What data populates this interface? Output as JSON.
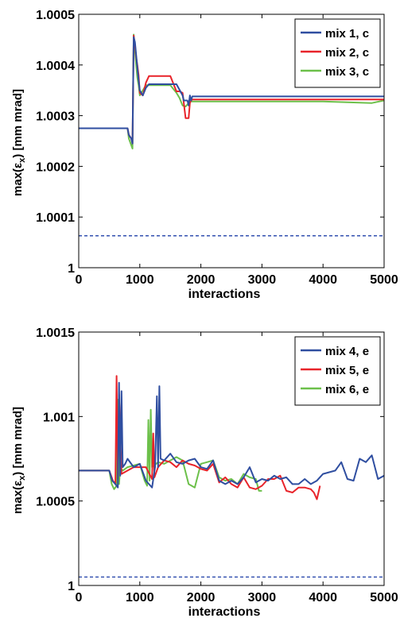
{
  "chart_data": [
    {
      "type": "line",
      "xlabel": "interactions",
      "ylabel": "max(ε_x) [mm mrad]",
      "ylabel_main": "max(ε",
      "ylabel_sub": "x",
      "ylabel_tail": ") [mm mrad]",
      "xlim": [
        0,
        5000
      ],
      "ylim": [
        1.0,
        1.0005
      ],
      "xticks": [
        0,
        1000,
        2000,
        3000,
        4000,
        5000
      ],
      "xtick_labels": [
        "0",
        "1000",
        "2000",
        "3000",
        "4000",
        "5000"
      ],
      "yticks": [
        1.0,
        1.0001,
        1.0002,
        1.0003,
        1.0004,
        1.0005
      ],
      "ytick_labels": [
        "1",
        "1.0001",
        "1.0002",
        "1.0003",
        "1.0004",
        "1.0005"
      ],
      "legend_position": "top-right",
      "grid": false,
      "reference_line": {
        "y": 1.000063,
        "style": "dashed",
        "color": "#1f3fa8"
      },
      "series": [
        {
          "name": "mix 1, c",
          "color": "#2f4ea0",
          "x": [
            0,
            800,
            820,
            860,
            880,
            900,
            920,
            940,
            960,
            980,
            1000,
            1050,
            1100,
            1150,
            1200,
            1300,
            1400,
            1500,
            1600,
            1700,
            1720,
            1780,
            1800,
            1820,
            1840,
            1860,
            1900,
            2000,
            3000,
            4000,
            5000
          ],
          "y": [
            1.000275,
            1.000275,
            1.000262,
            1.000255,
            1.000245,
            1.000455,
            1.000445,
            1.00042,
            1.000395,
            1.00037,
            1.00035,
            1.00034,
            1.000355,
            1.000362,
            1.000362,
            1.000362,
            1.000362,
            1.000362,
            1.000362,
            1.00034,
            1.00033,
            1.00033,
            1.00032,
            1.00034,
            1.00033,
            1.000338,
            1.000338,
            1.000338,
            1.000338,
            1.000338,
            1.000338
          ]
        },
        {
          "name": "mix 2, c",
          "color": "#e8232a",
          "x": [
            0,
            800,
            820,
            860,
            880,
            900,
            920,
            940,
            960,
            980,
            1000,
            1050,
            1100,
            1150,
            1200,
            1300,
            1400,
            1500,
            1600,
            1650,
            1700,
            1750,
            1800,
            1820,
            1840,
            1860,
            1900,
            2000,
            3000,
            4000,
            5000
          ],
          "y": [
            1.000275,
            1.000275,
            1.000262,
            1.000255,
            1.000245,
            1.000458,
            1.00044,
            1.000415,
            1.0004,
            1.00038,
            1.000345,
            1.00034,
            1.000365,
            1.000378,
            1.000378,
            1.000378,
            1.000378,
            1.000378,
            1.000348,
            1.000348,
            1.000345,
            1.000295,
            1.000295,
            1.000325,
            1.00033,
            1.000332,
            1.000332,
            1.000332,
            1.000332,
            1.000332,
            1.000332
          ]
        },
        {
          "name": "mix 3, c",
          "color": "#6cc04a",
          "x": [
            0,
            800,
            820,
            860,
            880,
            900,
            920,
            940,
            960,
            980,
            1000,
            1050,
            1100,
            1150,
            1200,
            1300,
            1400,
            1500,
            1600,
            1650,
            1700,
            1750,
            1800,
            1820,
            1850,
            1900,
            2000,
            3000,
            3500,
            4000,
            4500,
            4800,
            5000
          ],
          "y": [
            1.000275,
            1.000275,
            1.000255,
            1.000242,
            1.000235,
            1.00046,
            1.00043,
            1.0004,
            1.000375,
            1.00036,
            1.00034,
            1.00035,
            1.00036,
            1.00036,
            1.00036,
            1.00036,
            1.00036,
            1.00036,
            1.000345,
            1.000335,
            1.00032,
            1.000318,
            1.000325,
            1.00033,
            1.000328,
            1.000328,
            1.000328,
            1.000328,
            1.000328,
            1.000328,
            1.000326,
            1.000325,
            1.00033
          ]
        }
      ]
    },
    {
      "type": "line",
      "xlabel": "interactions",
      "ylabel": "max(ε_x) [mm mrad]",
      "ylabel_main": "max(ε",
      "ylabel_sub": "x",
      "ylabel_tail": ") [mm mrad]",
      "xlim": [
        0,
        5000
      ],
      "ylim": [
        1.0,
        1.0015
      ],
      "xticks": [
        0,
        1000,
        2000,
        3000,
        4000,
        5000
      ],
      "xtick_labels": [
        "0",
        "1000",
        "2000",
        "3000",
        "4000",
        "5000"
      ],
      "yticks": [
        1.0,
        1.0005,
        1.001,
        1.0015
      ],
      "ytick_labels": [
        "1",
        "1.0005",
        "1.001",
        "1.0015"
      ],
      "legend_position": "top-right",
      "grid": false,
      "reference_line": {
        "y": 1.00005,
        "style": "dashed",
        "color": "#1f3fa8"
      },
      "series": [
        {
          "name": "mix 4, e",
          "color": "#2f4ea0",
          "x": [
            0,
            500,
            550,
            600,
            640,
            660,
            680,
            700,
            720,
            760,
            800,
            900,
            1000,
            1100,
            1150,
            1200,
            1250,
            1280,
            1300,
            1320,
            1340,
            1400,
            1500,
            1600,
            1700,
            1800,
            1900,
            2000,
            2100,
            2200,
            2300,
            2400,
            2500,
            2600,
            2700,
            2800,
            2900,
            3000,
            3100,
            3200,
            3300,
            3400,
            3500,
            3600,
            3700,
            3800,
            3900,
            4000,
            4100,
            4200,
            4300,
            4400,
            4500,
            4600,
            4700,
            4800,
            4900,
            5000
          ],
          "y": [
            1.00068,
            1.00068,
            1.00062,
            1.0006,
            1.00058,
            1.0012,
            1.00065,
            1.00115,
            1.0007,
            1.00072,
            1.00075,
            1.0007,
            1.00072,
            1.00062,
            1.0006,
            1.00058,
            1.0007,
            1.00112,
            1.0007,
            1.00118,
            1.00075,
            1.00074,
            1.00078,
            1.00073,
            1.00072,
            1.00074,
            1.00075,
            1.0007,
            1.00069,
            1.00074,
            1.00062,
            1.0006,
            1.00062,
            1.0006,
            1.00064,
            1.0007,
            1.00061,
            1.00063,
            1.00062,
            1.00065,
            1.00063,
            1.00064,
            1.0006,
            1.0006,
            1.00063,
            1.0006,
            1.00062,
            1.00066,
            1.00067,
            1.00068,
            1.00073,
            1.00063,
            1.00062,
            1.00075,
            1.00073,
            1.00077,
            1.00063,
            1.00065
          ]
        },
        {
          "name": "mix 5, e",
          "color": "#e8232a",
          "x": [
            0,
            500,
            560,
            600,
            620,
            640,
            660,
            700,
            800,
            900,
            1000,
            1100,
            1200,
            1220,
            1240,
            1300,
            1400,
            1500,
            1600,
            1700,
            1800,
            1900,
            2000,
            2100,
            2200,
            2300,
            2400,
            2500,
            2600,
            2700,
            2800,
            2900,
            3000,
            3100,
            3200,
            3300,
            3400,
            3500,
            3600,
            3700,
            3800,
            3850,
            3900,
            3950
          ],
          "y": [
            1.00068,
            1.00068,
            1.00062,
            1.0006,
            1.00124,
            1.00063,
            1.00113,
            1.00066,
            1.00068,
            1.0007,
            1.0007,
            1.0007,
            1.00063,
            1.0009,
            1.00064,
            1.0007,
            1.00074,
            1.00073,
            1.0007,
            1.00074,
            1.00072,
            1.00071,
            1.00069,
            1.00068,
            1.00072,
            1.00061,
            1.00064,
            1.0006,
            1.00058,
            1.00064,
            1.00058,
            1.00057,
            1.00059,
            1.00063,
            1.00063,
            1.00065,
            1.00056,
            1.00055,
            1.00058,
            1.00058,
            1.00057,
            1.00055,
            1.00051,
            1.00059
          ]
        },
        {
          "name": "mix 6, e",
          "color": "#6cc04a",
          "x": [
            0,
            500,
            540,
            580,
            620,
            640,
            660,
            680,
            720,
            800,
            900,
            1000,
            1080,
            1120,
            1140,
            1160,
            1180,
            1200,
            1300,
            1400,
            1500,
            1600,
            1700,
            1800,
            1900,
            2000,
            2100,
            2200,
            2300,
            2400,
            2500,
            2600,
            2700,
            2800,
            2900,
            2950,
            3000
          ],
          "y": [
            1.00068,
            1.00068,
            1.0006,
            1.00057,
            1.00059,
            1.0011,
            1.0006,
            1.0007,
            1.00068,
            1.0007,
            1.00071,
            1.00072,
            1.00062,
            1.00059,
            1.00098,
            1.00062,
            1.00104,
            1.0007,
            1.00073,
            1.00072,
            1.00074,
            1.00076,
            1.00074,
            1.0006,
            1.00058,
            1.00072,
            1.00073,
            1.00074,
            1.00064,
            1.00062,
            1.00063,
            1.0006,
            1.00066,
            1.00064,
            1.00063,
            1.00056,
            1.00056
          ]
        }
      ]
    }
  ]
}
